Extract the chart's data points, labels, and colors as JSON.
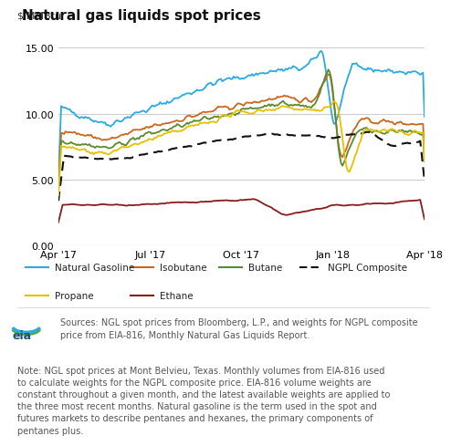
{
  "title": "Natural gas liquids spot prices",
  "ylabel": "$/MMBtu",
  "ylim": [
    0,
    16.5
  ],
  "yticks": [
    0.0,
    5.0,
    10.0,
    15.0
  ],
  "xtick_labels": [
    "Apr '17",
    "Jul '17",
    "Oct '17",
    "Jan '18",
    "Apr '18"
  ],
  "xtick_pos": [
    0,
    0.25,
    0.5,
    0.75,
    1.0
  ],
  "background_color": "#ffffff",
  "plot_bg_color": "#ffffff",
  "grid_color": "#cccccc",
  "legend_bg": "#ebebeb",
  "series": {
    "Natural Gasoline": {
      "color": "#29abe2",
      "linestyle": "solid",
      "linewidth": 1.3
    },
    "Isobutane": {
      "color": "#c8681e",
      "linestyle": "solid",
      "linewidth": 1.3
    },
    "Butane": {
      "color": "#5a8a2e",
      "linestyle": "solid",
      "linewidth": 1.3
    },
    "NGPL Composite": {
      "color": "#111111",
      "linestyle": "dashed",
      "linewidth": 1.5
    },
    "Propane": {
      "color": "#e8c000",
      "linestyle": "solid",
      "linewidth": 1.3
    },
    "Ethane": {
      "color": "#8b1a1a",
      "linestyle": "solid",
      "linewidth": 1.3
    }
  },
  "legend_row1": [
    "Natural Gasoline",
    "Isobutane",
    "Butane",
    "NGPL Composite"
  ],
  "legend_row2": [
    "Propane",
    "Ethane"
  ],
  "source_text": "Sources: NGL spot prices from Bloomberg, L.P., and weights for NGPL composite\nprice from EIA-816, Monthly Natural Gas Liquids Report.",
  "note_text": "Note: NGL spot prices at Mont Belvieu, Texas. Monthly volumes from EIA-816 used\nto calculate weights for the NGPL composite price. EIA-816 volume weights are\nconstant throughout a given month, and the latest available weights are applied to\nthe three most recent months. Natural gasoline is the term used in the spot and\nfutures markets to describe pentanes and hexanes, the primary components of\npentanes plus."
}
